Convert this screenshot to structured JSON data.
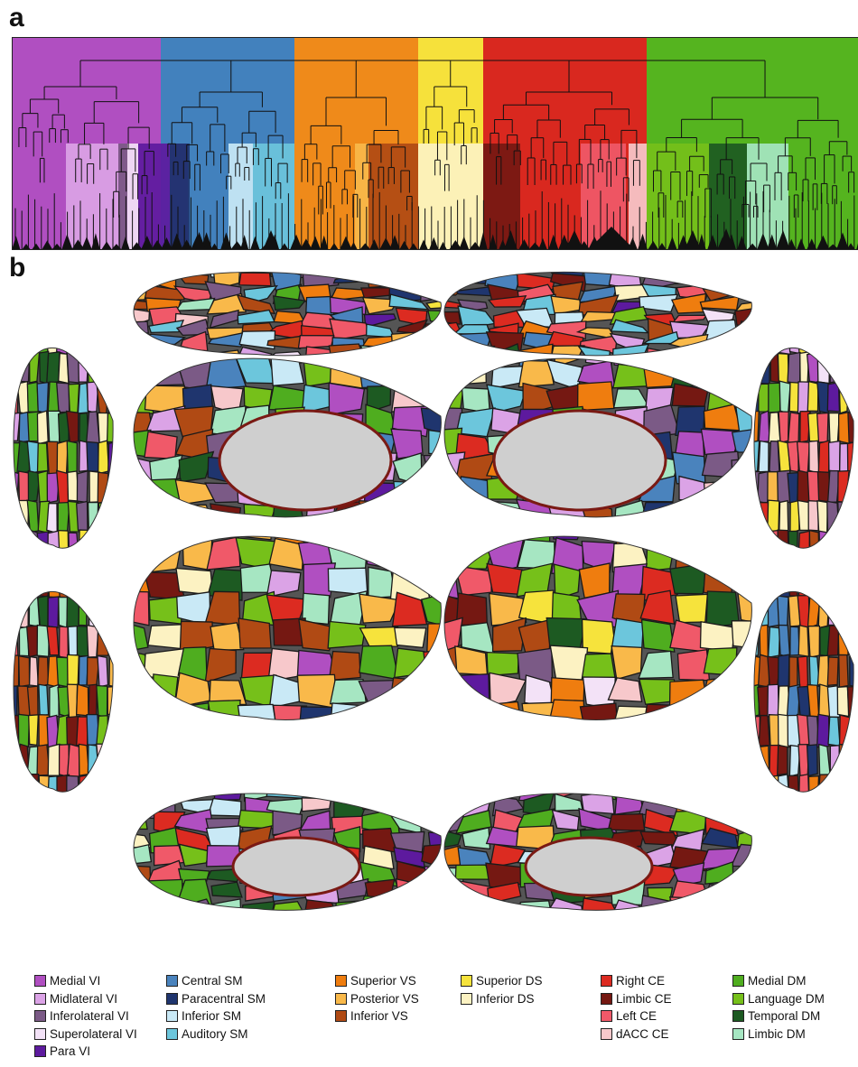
{
  "panel_a_label": "a",
  "panel_b_label": "b",
  "modules": [
    {
      "name": "VI",
      "color": "#b04fc1"
    },
    {
      "name": "SM",
      "color": "#4281bd"
    },
    {
      "name": "VS",
      "color": "#ef8a1a"
    },
    {
      "name": "DS",
      "color": "#f6e13b"
    },
    {
      "name": "CE",
      "color": "#d9281f"
    },
    {
      "name": "DM",
      "color": "#55b41f"
    }
  ],
  "legend": [
    [
      {
        "label": "Medial VI",
        "color": "#b04fc1"
      },
      {
        "label": "Midlateral VI",
        "color": "#dba3e6"
      },
      {
        "label": "Inferolateral VI",
        "color": "#7b5a86"
      },
      {
        "label": "Superolateral VI",
        "color": "#f3e2f7"
      },
      {
        "label": "Para VI",
        "color": "#5d1a9e"
      }
    ],
    [
      {
        "label": "Central SM",
        "color": "#4a83bd"
      },
      {
        "label": "Paracentral SM",
        "color": "#1f356e"
      },
      {
        "label": "Inferior SM",
        "color": "#c9e9f6"
      },
      {
        "label": "Auditory SM",
        "color": "#6cc6dc"
      }
    ],
    [
      {
        "label": "Superior VS",
        "color": "#ef7d0f"
      },
      {
        "label": "Posterior VS",
        "color": "#f9b94a"
      },
      {
        "label": "Inferior VS",
        "color": "#b04a14"
      }
    ],
    [
      {
        "label": "Superior DS",
        "color": "#f6e33c"
      },
      {
        "label": "Inferior DS",
        "color": "#fcf2c2"
      }
    ],
    [
      {
        "label": "Right CE",
        "color": "#dc2b21"
      },
      {
        "label": "Limbic CE",
        "color": "#751812"
      },
      {
        "label": "Left CE",
        "color": "#f05969"
      },
      {
        "label": "dACC CE",
        "color": "#f7c8cb"
      }
    ],
    [
      {
        "label": "Medial DM",
        "color": "#4fad1f"
      },
      {
        "label": "Language DM",
        "color": "#76c01a"
      },
      {
        "label": "Temporal DM",
        "color": "#1d5a22"
      },
      {
        "label": "Limbic DM",
        "color": "#a6e6c2"
      }
    ]
  ]
}
